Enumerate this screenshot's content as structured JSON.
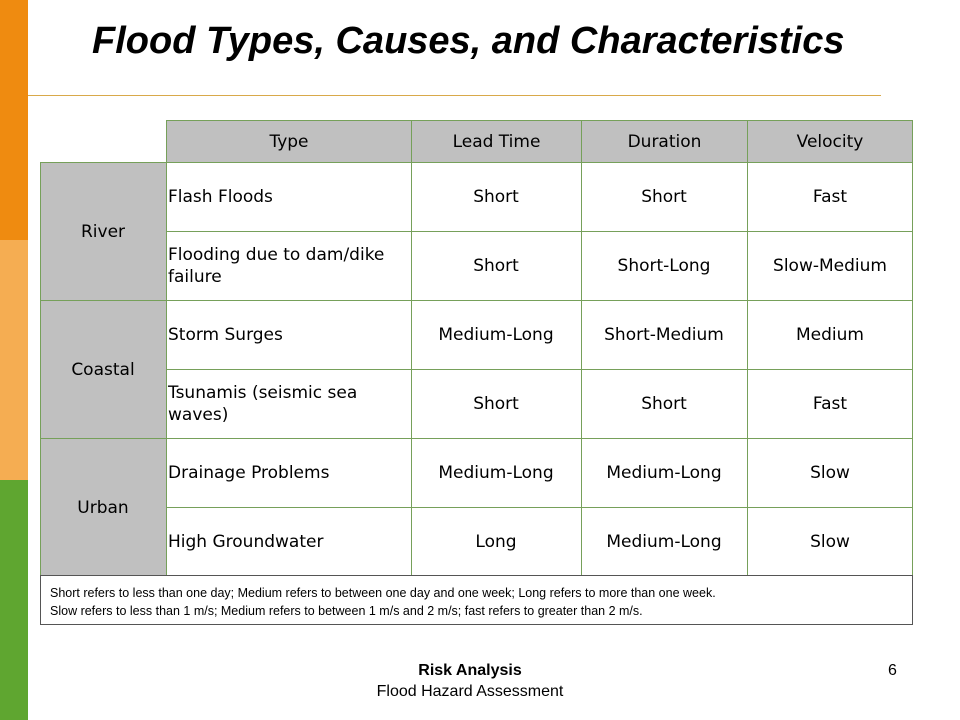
{
  "title": "Flood Types, Causes, and Characteristics",
  "table": {
    "headers": [
      "Type",
      "Lead Time",
      "Duration",
      "Velocity"
    ],
    "groups": [
      {
        "name": "River",
        "rows": [
          {
            "type": "Flash Floods",
            "lead_time": "Short",
            "duration": "Short",
            "velocity": "Fast"
          },
          {
            "type": "Flooding due to dam/dike failure",
            "lead_time": "Short",
            "duration": "Short-Long",
            "velocity": "Slow-Medium"
          }
        ]
      },
      {
        "name": "Coastal",
        "rows": [
          {
            "type": "Storm Surges",
            "lead_time": "Medium-Long",
            "duration": "Short-Medium",
            "velocity": "Medium"
          },
          {
            "type": "Tsunamis (seismic sea waves)",
            "lead_time": "Short",
            "duration": "Short",
            "velocity": "Fast"
          }
        ]
      },
      {
        "name": "Urban",
        "rows": [
          {
            "type": "Drainage Problems",
            "lead_time": "Medium-Long",
            "duration": "Medium-Long",
            "velocity": "Slow"
          },
          {
            "type": "High Groundwater",
            "lead_time": "Long",
            "duration": "Medium-Long",
            "velocity": "Slow"
          }
        ]
      }
    ]
  },
  "notes": [
    "Short refers to less than one day; Medium refers to between one day and one week; Long refers to more than one week.",
    "Slow refers to less than 1 m/s; Medium refers to between 1 m/s and 2 m/s; fast refers to greater than 2 m/s."
  ],
  "footer": {
    "line1": "Risk Analysis",
    "line2": "Flood Hazard Assessment"
  },
  "page_number": "6",
  "colors": {
    "accent_orange": "#ef8b10",
    "accent_light_orange": "#f5ad52",
    "accent_green": "#5fa630",
    "header_gray": "#c0c0c0",
    "grid_green": "#76a05a"
  }
}
